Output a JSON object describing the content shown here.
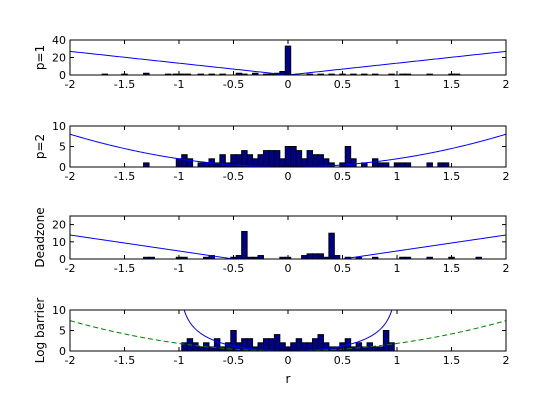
{
  "chart_data": [
    {
      "type": "bar",
      "ylabel": "p=1",
      "xlabel": "",
      "xlim": [
        -2,
        2
      ],
      "ylim": [
        0,
        40
      ],
      "xticks": [
        "-2",
        "-1.5",
        "-1",
        "-0.5",
        "0",
        "0.5",
        "1",
        "1.5",
        "2"
      ],
      "yticks": [
        "0",
        "20",
        "40"
      ],
      "bar_color": "#00008f",
      "bar_width": 0.05,
      "bars": [
        {
          "x": -1.68,
          "y": 1
        },
        {
          "x": -1.5,
          "y": 1
        },
        {
          "x": -1.3,
          "y": 2
        },
        {
          "x": -1.1,
          "y": 1
        },
        {
          "x": -1.03,
          "y": 1
        },
        {
          "x": -0.98,
          "y": 1
        },
        {
          "x": -0.92,
          "y": 1
        },
        {
          "x": -0.8,
          "y": 1
        },
        {
          "x": -0.7,
          "y": 1
        },
        {
          "x": -0.6,
          "y": 1
        },
        {
          "x": -0.45,
          "y": 2
        },
        {
          "x": -0.4,
          "y": 1
        },
        {
          "x": -0.3,
          "y": 2
        },
        {
          "x": -0.2,
          "y": 1
        },
        {
          "x": -0.15,
          "y": 1
        },
        {
          "x": -0.1,
          "y": 2
        },
        {
          "x": -0.05,
          "y": 4
        },
        {
          "x": 0.0,
          "y": 33
        },
        {
          "x": 0.2,
          "y": 1
        },
        {
          "x": 0.3,
          "y": 1
        },
        {
          "x": 0.4,
          "y": 1
        },
        {
          "x": 0.5,
          "y": 1
        },
        {
          "x": 0.6,
          "y": 1
        },
        {
          "x": 0.7,
          "y": 1
        },
        {
          "x": 0.8,
          "y": 1
        },
        {
          "x": 0.95,
          "y": 1
        },
        {
          "x": 1.05,
          "y": 1
        },
        {
          "x": 1.1,
          "y": 1
        },
        {
          "x": 1.3,
          "y": 1
        },
        {
          "x": 1.5,
          "y": 1
        },
        {
          "x": 1.55,
          "y": 1
        }
      ],
      "curves": [
        {
          "kind": "abs",
          "scale": 13.5,
          "color": "#0000ff",
          "dash": "solid"
        }
      ]
    },
    {
      "type": "bar",
      "ylabel": "p=2",
      "xlabel": "",
      "xlim": [
        -2,
        2
      ],
      "ylim": [
        0,
        10
      ],
      "xticks": [
        "-2",
        "-1.5",
        "-1",
        "-0.5",
        "0",
        "0.5",
        "1",
        "1.5",
        "2"
      ],
      "yticks": [
        "0",
        "5",
        "10"
      ],
      "bar_color": "#00008f",
      "bar_width": 0.05,
      "bars": [
        {
          "x": -1.3,
          "y": 1
        },
        {
          "x": -1.0,
          "y": 2
        },
        {
          "x": -0.95,
          "y": 3
        },
        {
          "x": -0.9,
          "y": 2
        },
        {
          "x": -0.8,
          "y": 1
        },
        {
          "x": -0.75,
          "y": 1
        },
        {
          "x": -0.7,
          "y": 2
        },
        {
          "x": -0.65,
          "y": 1
        },
        {
          "x": -0.6,
          "y": 3
        },
        {
          "x": -0.55,
          "y": 1
        },
        {
          "x": -0.5,
          "y": 3
        },
        {
          "x": -0.45,
          "y": 3
        },
        {
          "x": -0.4,
          "y": 4
        },
        {
          "x": -0.35,
          "y": 3
        },
        {
          "x": -0.3,
          "y": 2
        },
        {
          "x": -0.25,
          "y": 3
        },
        {
          "x": -0.2,
          "y": 4
        },
        {
          "x": -0.15,
          "y": 4
        },
        {
          "x": -0.1,
          "y": 4
        },
        {
          "x": -0.05,
          "y": 2
        },
        {
          "x": 0.0,
          "y": 5
        },
        {
          "x": 0.05,
          "y": 5
        },
        {
          "x": 0.1,
          "y": 4
        },
        {
          "x": 0.15,
          "y": 2
        },
        {
          "x": 0.2,
          "y": 4
        },
        {
          "x": 0.25,
          "y": 3
        },
        {
          "x": 0.3,
          "y": 3
        },
        {
          "x": 0.35,
          "y": 2
        },
        {
          "x": 0.4,
          "y": 1
        },
        {
          "x": 0.5,
          "y": 1
        },
        {
          "x": 0.55,
          "y": 5
        },
        {
          "x": 0.6,
          "y": 2
        },
        {
          "x": 0.7,
          "y": 1
        },
        {
          "x": 0.8,
          "y": 2
        },
        {
          "x": 0.85,
          "y": 1
        },
        {
          "x": 0.9,
          "y": 1
        },
        {
          "x": 1.0,
          "y": 1
        },
        {
          "x": 1.05,
          "y": 1
        },
        {
          "x": 1.1,
          "y": 1
        },
        {
          "x": 1.3,
          "y": 1
        },
        {
          "x": 1.4,
          "y": 1
        },
        {
          "x": 1.45,
          "y": 1
        }
      ],
      "curves": [
        {
          "kind": "quad",
          "scale": 2.0,
          "color": "#0000ff",
          "dash": "solid"
        }
      ]
    },
    {
      "type": "bar",
      "ylabel": "Deadzone",
      "xlabel": "",
      "xlim": [
        -2,
        2
      ],
      "ylim": [
        0,
        25
      ],
      "xticks": [
        "-2",
        "-1.5",
        "-1",
        "-0.5",
        "0",
        "0.5",
        "1",
        "1.5",
        "2"
      ],
      "yticks": [
        "0",
        "10",
        "20"
      ],
      "bar_color": "#00008f",
      "bar_width": 0.05,
      "bars": [
        {
          "x": -1.3,
          "y": 1
        },
        {
          "x": -1.25,
          "y": 1
        },
        {
          "x": -1.0,
          "y": 1
        },
        {
          "x": -0.95,
          "y": 1
        },
        {
          "x": -0.75,
          "y": 1
        },
        {
          "x": -0.7,
          "y": 2
        },
        {
          "x": -0.5,
          "y": 1
        },
        {
          "x": -0.45,
          "y": 2
        },
        {
          "x": -0.4,
          "y": 16
        },
        {
          "x": -0.35,
          "y": 1
        },
        {
          "x": -0.3,
          "y": 1
        },
        {
          "x": -0.25,
          "y": 2
        },
        {
          "x": -0.05,
          "y": 1
        },
        {
          "x": 0.0,
          "y": 1
        },
        {
          "x": 0.15,
          "y": 2
        },
        {
          "x": 0.2,
          "y": 3
        },
        {
          "x": 0.25,
          "y": 3
        },
        {
          "x": 0.3,
          "y": 3
        },
        {
          "x": 0.35,
          "y": 1
        },
        {
          "x": 0.4,
          "y": 15
        },
        {
          "x": 0.45,
          "y": 2
        },
        {
          "x": 0.55,
          "y": 1
        },
        {
          "x": 0.65,
          "y": 1
        },
        {
          "x": 0.8,
          "y": 1
        },
        {
          "x": 1.05,
          "y": 1
        },
        {
          "x": 1.1,
          "y": 1
        },
        {
          "x": 1.3,
          "y": 1
        },
        {
          "x": 1.5,
          "y": 1
        },
        {
          "x": 1.75,
          "y": 1
        }
      ],
      "curves": [
        {
          "kind": "deadzone",
          "scale": 9.3,
          "a": 0.5,
          "color": "#0000ff",
          "dash": "solid"
        }
      ]
    },
    {
      "type": "bar",
      "ylabel": "Log barrier",
      "xlabel": "r",
      "xlim": [
        -2,
        2
      ],
      "ylim": [
        0,
        10
      ],
      "xticks": [
        "-2",
        "-1.5",
        "-1",
        "-0.5",
        "0",
        "0.5",
        "1",
        "1.5",
        "2"
      ],
      "yticks": [
        "0",
        "5",
        "10"
      ],
      "bar_color": "#00008f",
      "bar_width": 0.05,
      "bars": [
        {
          "x": -0.95,
          "y": 2
        },
        {
          "x": -0.9,
          "y": 3
        },
        {
          "x": -0.85,
          "y": 2
        },
        {
          "x": -0.8,
          "y": 1
        },
        {
          "x": -0.75,
          "y": 2
        },
        {
          "x": -0.7,
          "y": 1
        },
        {
          "x": -0.65,
          "y": 3
        },
        {
          "x": -0.6,
          "y": 1
        },
        {
          "x": -0.55,
          "y": 2
        },
        {
          "x": -0.5,
          "y": 5
        },
        {
          "x": -0.45,
          "y": 2
        },
        {
          "x": -0.4,
          "y": 3
        },
        {
          "x": -0.35,
          "y": 3
        },
        {
          "x": -0.3,
          "y": 1
        },
        {
          "x": -0.25,
          "y": 2
        },
        {
          "x": -0.2,
          "y": 3
        },
        {
          "x": -0.15,
          "y": 3
        },
        {
          "x": -0.1,
          "y": 4
        },
        {
          "x": -0.05,
          "y": 2
        },
        {
          "x": 0.0,
          "y": 1
        },
        {
          "x": 0.05,
          "y": 2
        },
        {
          "x": 0.1,
          "y": 3
        },
        {
          "x": 0.15,
          "y": 2
        },
        {
          "x": 0.2,
          "y": 2
        },
        {
          "x": 0.25,
          "y": 3
        },
        {
          "x": 0.3,
          "y": 4
        },
        {
          "x": 0.35,
          "y": 2
        },
        {
          "x": 0.4,
          "y": 1
        },
        {
          "x": 0.45,
          "y": 1
        },
        {
          "x": 0.5,
          "y": 2
        },
        {
          "x": 0.55,
          "y": 3
        },
        {
          "x": 0.6,
          "y": 1
        },
        {
          "x": 0.65,
          "y": 2
        },
        {
          "x": 0.7,
          "y": 1
        },
        {
          "x": 0.75,
          "y": 2
        },
        {
          "x": 0.8,
          "y": 1
        },
        {
          "x": 0.85,
          "y": 1
        },
        {
          "x": 0.9,
          "y": 5
        },
        {
          "x": 0.95,
          "y": 2
        }
      ],
      "curves": [
        {
          "kind": "logbarrier",
          "scale": 4.2,
          "color": "#0000ff",
          "dash": "solid"
        },
        {
          "kind": "quad",
          "scale": 1.85,
          "color": "#008000",
          "dash": "dashed"
        }
      ]
    }
  ]
}
